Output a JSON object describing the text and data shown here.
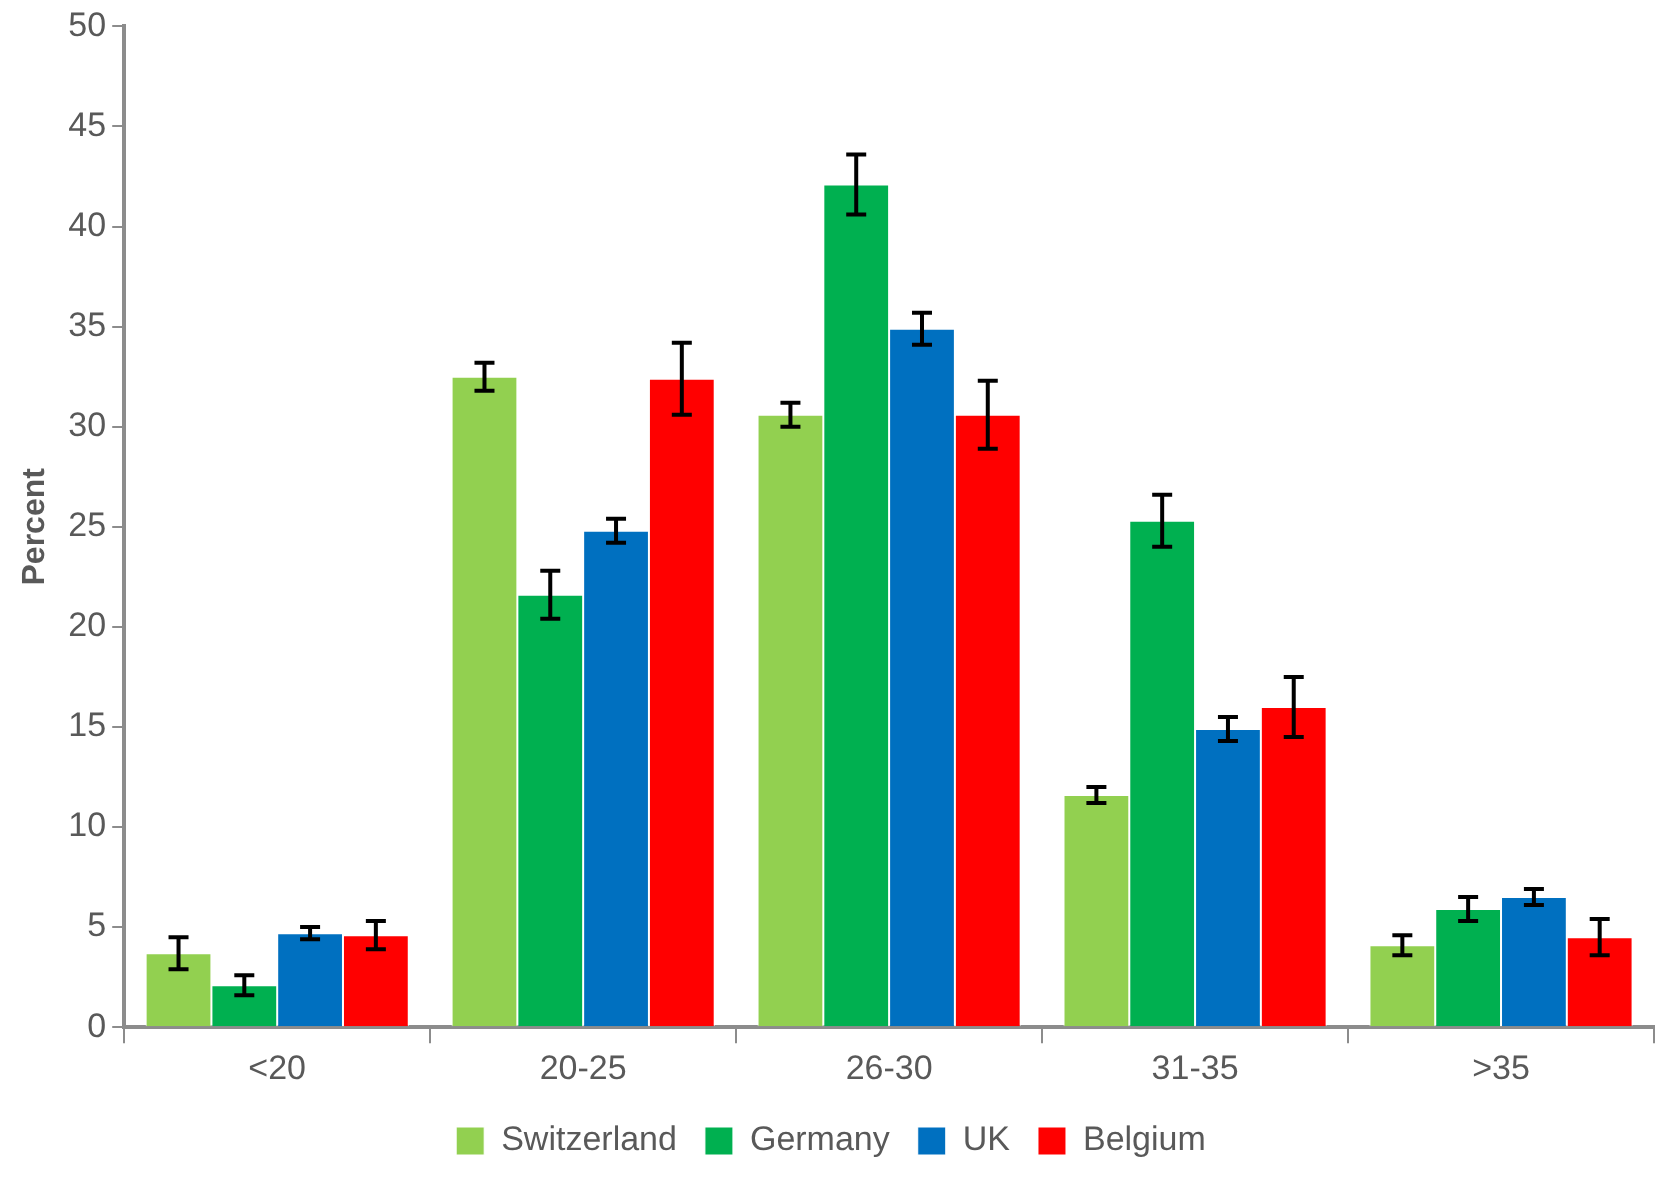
{
  "chart_data": {
    "type": "bar",
    "ylabel": "Percent",
    "categories": [
      "<20",
      "20-25",
      "26-30",
      "31-35",
      ">35"
    ],
    "series": [
      {
        "name": "Switzerland",
        "color": "#92d050",
        "values": [
          3.7,
          32.5,
          30.6,
          11.6,
          4.1
        ],
        "errors": [
          0.8,
          0.7,
          0.6,
          0.4,
          0.5
        ]
      },
      {
        "name": "Germany",
        "color": "#00b050",
        "values": [
          2.1,
          21.6,
          42.1,
          25.3,
          5.9
        ],
        "errors": [
          0.5,
          1.2,
          1.5,
          1.3,
          0.6
        ]
      },
      {
        "name": "UK",
        "color": "#0070c0",
        "values": [
          4.7,
          24.8,
          34.9,
          14.9,
          6.5
        ],
        "errors": [
          0.3,
          0.6,
          0.8,
          0.6,
          0.4
        ]
      },
      {
        "name": "Belgium",
        "color": "#ff0000",
        "values": [
          4.6,
          32.4,
          30.6,
          16.0,
          4.5
        ],
        "errors": [
          0.7,
          1.8,
          1.7,
          1.5,
          0.9
        ]
      }
    ],
    "ylim": [
      0,
      50
    ],
    "yticks": [
      0,
      5,
      10,
      15,
      20,
      25,
      30,
      35,
      40,
      45,
      50
    ],
    "grid": false,
    "legend": "bottom"
  }
}
